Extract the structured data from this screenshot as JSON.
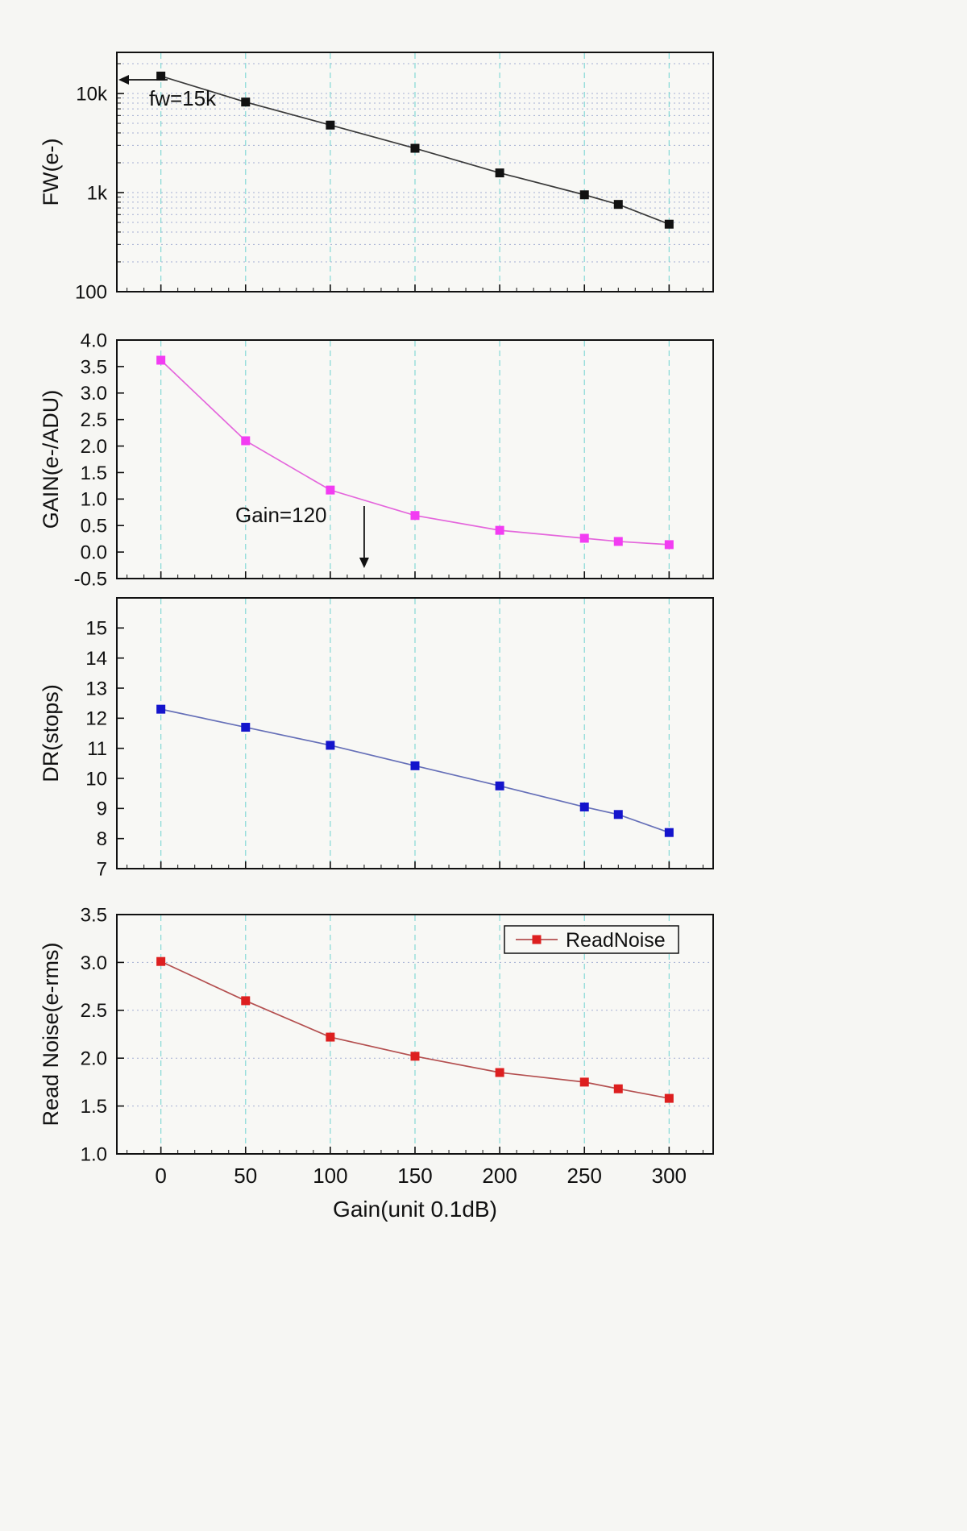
{
  "figure": {
    "background": "#f6f6f3",
    "panel_background": "#f8f8f5",
    "frame_color": "#111111",
    "vgrid_color": "#85d9d6",
    "hgrid_color": "#8896c8"
  },
  "xaxis": {
    "label": "Gain(unit 0.1dB)",
    "ticks": [
      0,
      50,
      100,
      150,
      200,
      250,
      300
    ],
    "range": [
      -26,
      326
    ]
  },
  "chart_data": [
    {
      "type": "line",
      "name": "FW",
      "ylabel": "FW(e-)",
      "yscale": "log",
      "ylim": [
        100,
        26000
      ],
      "yticks": [
        {
          "v": 10000,
          "label": "10k"
        },
        {
          "v": 1000,
          "label": "1k"
        },
        {
          "v": 100,
          "label": "100"
        }
      ],
      "x": [
        0,
        50,
        100,
        150,
        200,
        250,
        270,
        300
      ],
      "values": [
        15000,
        8200,
        4800,
        2800,
        1580,
        950,
        760,
        480
      ],
      "line_color": "#3a3a3a",
      "marker_color": "#111111",
      "annotation": {
        "text": "fw=15k"
      }
    },
    {
      "type": "line",
      "name": "GAIN",
      "ylabel": "GAIN(e-/ADU)",
      "yscale": "linear",
      "ylim": [
        -0.5,
        4.0
      ],
      "yticks": [
        {
          "v": 4.0,
          "label": "4.0"
        },
        {
          "v": 3.5,
          "label": "3.5"
        },
        {
          "v": 3.0,
          "label": "3.0"
        },
        {
          "v": 2.5,
          "label": "2.5"
        },
        {
          "v": 2.0,
          "label": "2.0"
        },
        {
          "v": 1.5,
          "label": "1.5"
        },
        {
          "v": 1.0,
          "label": "1.0"
        },
        {
          "v": 0.5,
          "label": "0.5"
        },
        {
          "v": 0.0,
          "label": "0.0"
        },
        {
          "v": -0.5,
          "label": "-0.5"
        }
      ],
      "x": [
        0,
        50,
        100,
        150,
        200,
        250,
        270,
        300
      ],
      "values": [
        3.62,
        2.1,
        1.17,
        0.69,
        0.41,
        0.26,
        0.2,
        0.14
      ],
      "line_color": "#e466dc",
      "marker_color": "#f23cf2",
      "annotation": {
        "text": "Gain=120"
      }
    },
    {
      "type": "line",
      "name": "DR",
      "ylabel": "DR(stops)",
      "yscale": "linear",
      "ylim": [
        7,
        16
      ],
      "yticks": [
        {
          "v": 15,
          "label": "15"
        },
        {
          "v": 14,
          "label": "14"
        },
        {
          "v": 13,
          "label": "13"
        },
        {
          "v": 12,
          "label": "12"
        },
        {
          "v": 11,
          "label": "11"
        },
        {
          "v": 10,
          "label": "10"
        },
        {
          "v": 9,
          "label": "9"
        },
        {
          "v": 8,
          "label": "8"
        },
        {
          "v": 7,
          "label": "7"
        }
      ],
      "x": [
        0,
        50,
        100,
        150,
        200,
        250,
        270,
        300
      ],
      "values": [
        12.3,
        11.7,
        11.1,
        10.42,
        9.75,
        9.05,
        8.8,
        8.2
      ],
      "line_color": "#6670b8",
      "marker_color": "#1414cc"
    },
    {
      "type": "line",
      "name": "ReadNoise",
      "ylabel": "Read Noise(e-rms)",
      "yscale": "linear",
      "ylim": [
        1.0,
        3.5
      ],
      "yticks": [
        {
          "v": 3.5,
          "label": "3.5"
        },
        {
          "v": 3.0,
          "label": "3.0"
        },
        {
          "v": 2.5,
          "label": "2.5"
        },
        {
          "v": 2.0,
          "label": "2.0"
        },
        {
          "v": 1.5,
          "label": "1.5"
        },
        {
          "v": 1.0,
          "label": "1.0"
        }
      ],
      "x": [
        0,
        50,
        100,
        150,
        200,
        250,
        270,
        300
      ],
      "values": [
        3.01,
        2.6,
        2.22,
        2.02,
        1.85,
        1.75,
        1.68,
        1.58
      ],
      "line_color": "#b45050",
      "marker_color": "#dd1f1f",
      "legend": "ReadNoise"
    }
  ]
}
